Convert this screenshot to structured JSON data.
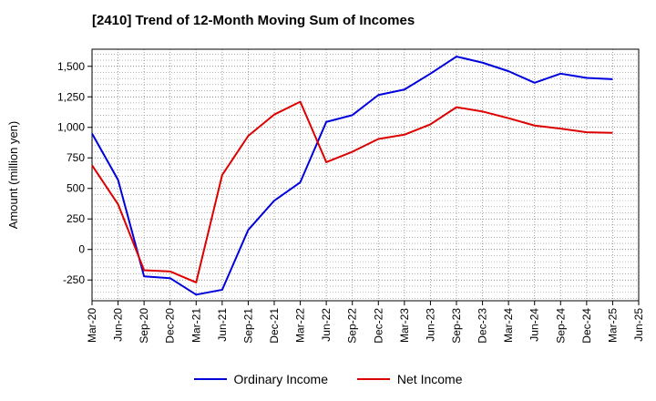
{
  "chart_data": {
    "type": "line",
    "title": "[2410]  Trend of 12-Month Moving Sum of Incomes",
    "xlabel": "",
    "ylabel": "Amount (million yen)",
    "ylim": [
      -420,
      1640
    ],
    "yticks": [
      -250,
      0,
      250,
      500,
      750,
      1000,
      1250,
      1500
    ],
    "ytick_labels": [
      "-250",
      "0",
      "250",
      "500",
      "750",
      "1,000",
      "1,250",
      "1,500"
    ],
    "categories": [
      "Mar-20",
      "Jun-20",
      "Sep-20",
      "Dec-20",
      "Mar-21",
      "Jun-21",
      "Sep-21",
      "Dec-21",
      "Mar-22",
      "Jun-22",
      "Sep-22",
      "Dec-22",
      "Mar-23",
      "Jun-23",
      "Sep-23",
      "Dec-23",
      "Mar-24",
      "Jun-24",
      "Sep-24",
      "Dec-24",
      "Mar-25",
      "Jun-25"
    ],
    "grid": true,
    "legend_position": "bottom",
    "series": [
      {
        "name": "Ordinary Income",
        "color": "#0000dd",
        "values": [
          950,
          570,
          -220,
          -235,
          -370,
          -330,
          160,
          400,
          550,
          1045,
          1100,
          1265,
          1310,
          1440,
          1580,
          1530,
          1460,
          1365,
          1440,
          1405,
          1395,
          null
        ]
      },
      {
        "name": "Net Income",
        "color": "#dd0000",
        "values": [
          690,
          370,
          -170,
          -180,
          -270,
          610,
          930,
          1105,
          1210,
          715,
          800,
          905,
          940,
          1025,
          1165,
          1130,
          1075,
          1015,
          990,
          960,
          955,
          null
        ]
      }
    ]
  }
}
